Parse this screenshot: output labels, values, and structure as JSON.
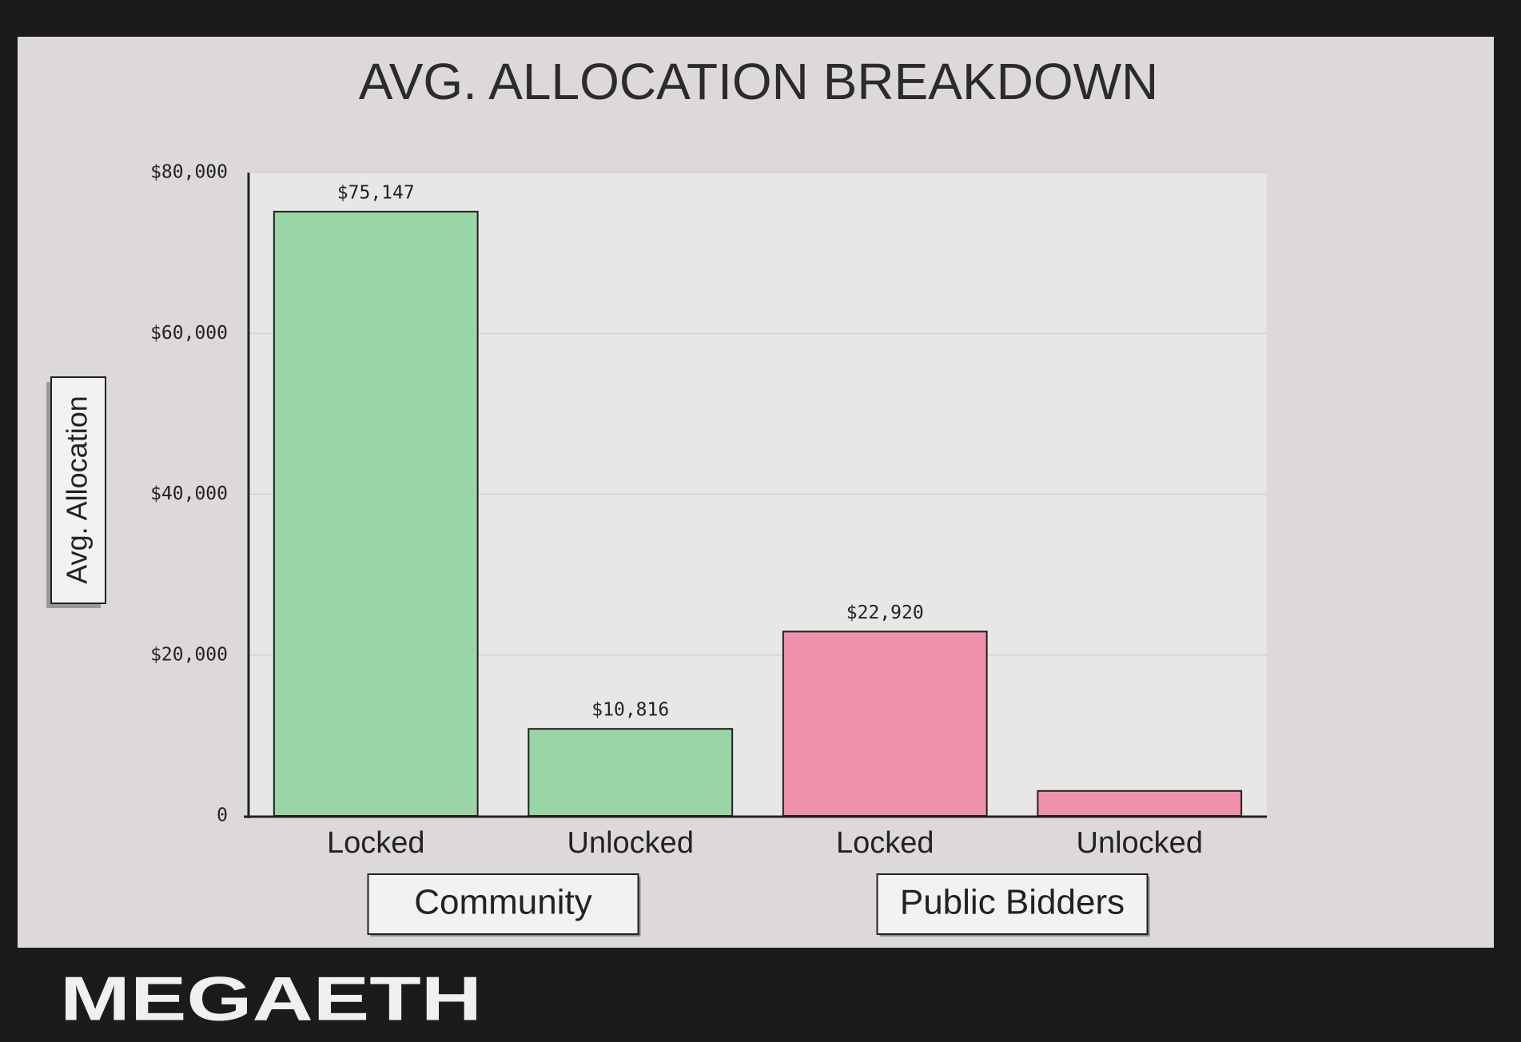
{
  "chart_data": {
    "type": "bar",
    "title": "AVG. ALLOCATION BREAKDOWN",
    "y_label": "Avg. Allocation",
    "categories": [
      "Locked",
      "Unlocked",
      "Locked",
      "Unlocked"
    ],
    "groups": [
      "Community",
      "Public Bidders"
    ],
    "values": [
      75147,
      10816,
      22920,
      3100
    ],
    "value_labels": [
      "$75,147",
      "$10,816",
      "$22,920",
      null
    ],
    "colors": [
      "#9ad5a5",
      "#9ad5a5",
      "#ee91ad",
      "#ee91ad"
    ],
    "ylim": [
      0,
      80000
    ],
    "yticks": [
      0,
      {
        "value": 20000,
        "label": "$20,000"
      },
      {
        "value": 40000,
        "label": "$40,000"
      },
      {
        "value": 60000,
        "label": "$60,000"
      },
      {
        "value": 80000,
        "label": "$80,000"
      }
    ],
    "grid": true
  },
  "brand": "MEGAETH"
}
